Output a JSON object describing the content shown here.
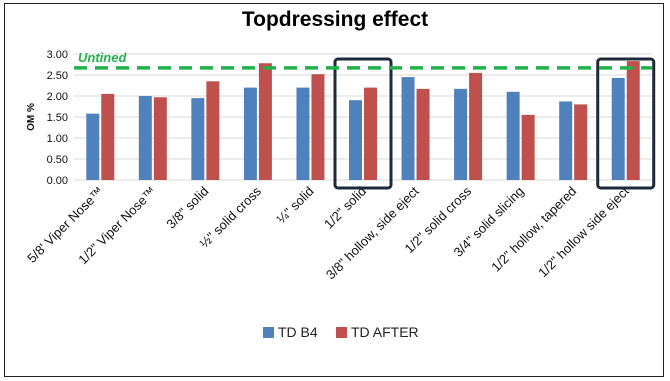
{
  "chart_data": {
    "type": "bar",
    "title": "Topdressing effect",
    "xlabel": "",
    "ylabel": "OM %",
    "ylim": [
      0,
      3.0
    ],
    "yticks": [
      "0.00",
      "0.50",
      "1.00",
      "1.50",
      "2.00",
      "2.50",
      "3.00"
    ],
    "categories": [
      "5/8' Viper Nose™",
      "1/2\" Viper Nose™",
      "3/8\" solid",
      "½\" solid cross",
      "¼\" solid",
      "1/2\" solid",
      "3/8\" hollow, side eject",
      "1/2\" solid cross",
      "3/4\" solid slicing",
      "1/2\" hollow, tapered",
      "1/2\" hollow side eject"
    ],
    "series": [
      {
        "name": "TD B4",
        "color": "#4f81bd",
        "values": [
          1.58,
          2.0,
          1.95,
          2.2,
          2.2,
          1.9,
          2.45,
          2.17,
          2.1,
          1.87,
          2.43
        ]
      },
      {
        "name": "TD AFTER",
        "color": "#c0504d",
        "values": [
          2.05,
          1.97,
          2.35,
          2.78,
          2.52,
          2.2,
          2.17,
          2.55,
          1.55,
          1.8,
          2.83
        ]
      }
    ],
    "reference_line": {
      "label": "Untined",
      "value": 2.67,
      "color": "#22b24c"
    },
    "highlighted_categories": [
      "1/2\" solid",
      "1/2\" hollow side eject"
    ],
    "grid": true,
    "legend_position": "bottom"
  }
}
